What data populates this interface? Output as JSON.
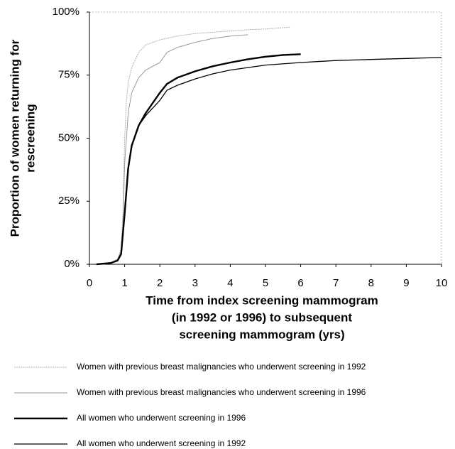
{
  "chart_data": {
    "type": "line",
    "xlabel": [
      "Time from index screening mammogram",
      "(in 1992 or 1996)  to subsequent",
      "screening  mammogram (yrs)"
    ],
    "ylabel": [
      "Proportion of women returning for",
      "rescreening"
    ],
    "xlim": [
      0,
      10
    ],
    "ylim": [
      0,
      100
    ],
    "xticks": [
      0,
      1,
      2,
      3,
      4,
      5,
      6,
      7,
      8,
      9,
      10
    ],
    "yticks": [
      {
        "value": 0,
        "label": "0%"
      },
      {
        "value": 25,
        "label": "25%"
      },
      {
        "value": 50,
        "label": "50%"
      },
      {
        "value": 75,
        "label": "75%"
      },
      {
        "value": 100,
        "label": "100%"
      }
    ],
    "grid": false,
    "legend": "bottom",
    "series": [
      {
        "name": "Women with previous breast malignancies who underwent screening in 1992",
        "color": "#b0b0b0",
        "dash": "2,1",
        "line_width": 1,
        "x": [
          0.4,
          0.6,
          0.8,
          0.9,
          0.95,
          1.0,
          1.05,
          1.1,
          1.2,
          1.4,
          1.6,
          2.0,
          2.5,
          3,
          3.5,
          4,
          4.5,
          5,
          5.7
        ],
        "values": [
          0,
          0.5,
          2,
          6,
          20,
          50,
          65,
          72,
          78,
          84,
          87,
          89,
          90.5,
          91.5,
          92,
          92.5,
          93,
          93.3,
          94
        ]
      },
      {
        "name": "Women with previous breast malignancies who underwent screening in 1996",
        "color": "#999999",
        "dash": "",
        "line_width": 1,
        "x": [
          0.4,
          0.6,
          0.8,
          0.9,
          0.95,
          1.0,
          1.1,
          1.2,
          1.4,
          1.6,
          2.0,
          2.2,
          2.5,
          3,
          3.5,
          4,
          4.5
        ],
        "values": [
          0,
          0.5,
          2,
          5,
          15,
          40,
          60,
          68,
          74,
          77,
          80,
          84,
          86,
          88,
          89.5,
          90.5,
          91
        ]
      },
      {
        "name": "All women who underwent screening in 1996",
        "color": "#000000",
        "dash": "",
        "line_width": 2.4,
        "x": [
          0.2,
          0.6,
          0.8,
          0.9,
          1.0,
          1.1,
          1.2,
          1.4,
          1.6,
          1.8,
          2.0,
          2.2,
          2.5,
          3,
          3.5,
          4,
          4.5,
          5,
          5.5,
          6
        ],
        "values": [
          0,
          0.5,
          1.5,
          4,
          20,
          38,
          47,
          55,
          60,
          64,
          68,
          71.5,
          74,
          76.5,
          78.5,
          80,
          81.3,
          82.3,
          83,
          83.3
        ]
      },
      {
        "name": "All women who underwent screening in 1992",
        "color": "#000000",
        "dash": "",
        "line_width": 1.3,
        "x": [
          0.2,
          0.6,
          0.8,
          0.9,
          1.0,
          1.1,
          1.2,
          1.4,
          1.6,
          1.8,
          2.0,
          2.2,
          2.5,
          3,
          3.5,
          4,
          4.5,
          5,
          6,
          7,
          8,
          9,
          10
        ],
        "values": [
          0,
          0.5,
          1.5,
          4,
          20,
          38,
          47,
          55,
          59,
          62,
          65,
          69,
          71,
          73.5,
          75.5,
          77,
          78,
          79,
          80,
          80.8,
          81.2,
          81.6,
          82
        ]
      }
    ]
  }
}
